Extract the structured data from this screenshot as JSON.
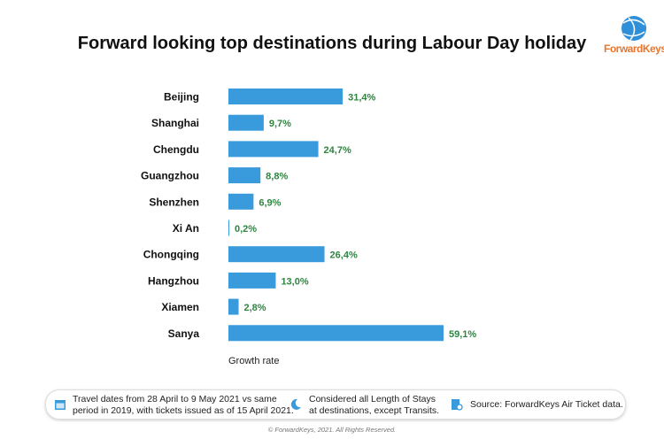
{
  "brand": {
    "name": "ForwardKeys",
    "logo_colors": [
      "#2f8fd8",
      "#e8762b"
    ]
  },
  "chart_data": {
    "type": "bar",
    "orientation": "horizontal",
    "title": "Forward looking top destinations during Labour Day holiday",
    "categories": [
      "Beijing",
      "Shanghai",
      "Chengdu",
      "Guangzhou",
      "Shenzhen",
      "Xi An",
      "Chongqing",
      "Hangzhou",
      "Xiamen",
      "Sanya"
    ],
    "values": [
      31.4,
      9.7,
      24.7,
      8.8,
      6.9,
      0.2,
      26.4,
      13.0,
      2.8,
      59.1
    ],
    "data_labels": [
      "31,4%",
      "9,7%",
      "24,7%",
      "8,8%",
      "6,9%",
      "0,2%",
      "26,4%",
      "13,0%",
      "2,8%",
      "59,1%"
    ],
    "xlabel": "Growth rate",
    "ylabel": "",
    "xlim": [
      0,
      70
    ],
    "grid": false,
    "bar_color": "#3a9bdc",
    "label_color": "#2e8540"
  },
  "footer": {
    "notes": [
      {
        "icon": "calendar-icon",
        "lines": [
          "Travel dates from 28 April to 9 May 2021 vs same",
          "period in 2019, with tickets issued as of 15 April 2021."
        ]
      },
      {
        "icon": "moon-icon",
        "lines": [
          "Considered all Length of Stays",
          "at destinations, except Transits."
        ]
      },
      {
        "icon": "document-search-icon",
        "lines": [
          "Source: ForwardKeys Air Ticket data."
        ]
      }
    ],
    "copyright": "© ForwardKeys, 2021. All Rights Reserved."
  }
}
